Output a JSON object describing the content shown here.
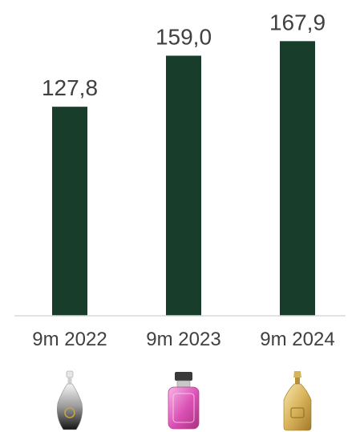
{
  "chart_data": {
    "type": "bar",
    "categories": [
      "9m 2022",
      "9m 2023",
      "9m 2024"
    ],
    "values": [
      127.8,
      159.0,
      167.9
    ],
    "data_labels": [
      "127,8",
      "159,0",
      "167,9"
    ],
    "title": "",
    "xlabel": "",
    "ylabel": "",
    "ylim": [
      0,
      171
    ],
    "grid": false,
    "legend": "none",
    "bar_color": "#183d2b",
    "axis_color": "#d9d9d9"
  },
  "icons": [
    "perfume-bottle-black-icon",
    "perfume-bottle-pink-icon",
    "perfume-bottle-gold-icon"
  ]
}
